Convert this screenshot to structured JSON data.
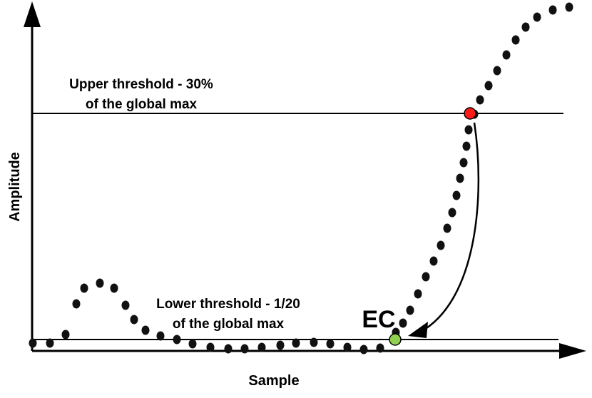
{
  "axes": {
    "xlabel": "Sample",
    "ylabel": "Amplitude"
  },
  "upper_threshold": {
    "line1": "Upper threshold - 30%",
    "line2": "of the global max"
  },
  "lower_threshold": {
    "line1": "Lower threshold - 1/20",
    "line2": "of the global max"
  },
  "marker_label": "EC",
  "colors": {
    "curve": "#111111",
    "upper_crossing": "#ff1a1a",
    "ec_point": "#8fd14f",
    "lines": "#000000"
  }
}
